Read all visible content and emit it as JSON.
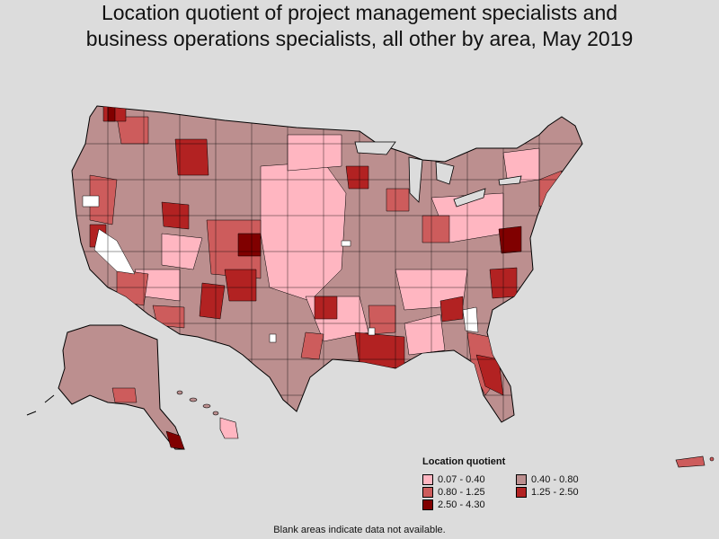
{
  "title_line1": "Location quotient of project management specialists and",
  "title_line2": "business operations specialists, all other by area, May 2019",
  "legend": {
    "title": "Location quotient",
    "items": [
      {
        "label": "0.07 - 0.40",
        "color": "#ffb6c1"
      },
      {
        "label": "0.40 - 0.80",
        "color": "#bc8f8f"
      },
      {
        "label": "0.80 - 1.25",
        "color": "#cd5c5c"
      },
      {
        "label": "1.25 - 2.50",
        "color": "#b22222"
      },
      {
        "label": "2.50 - 4.30",
        "color": "#800000"
      }
    ]
  },
  "footnote": "Blank areas indicate data not available."
}
